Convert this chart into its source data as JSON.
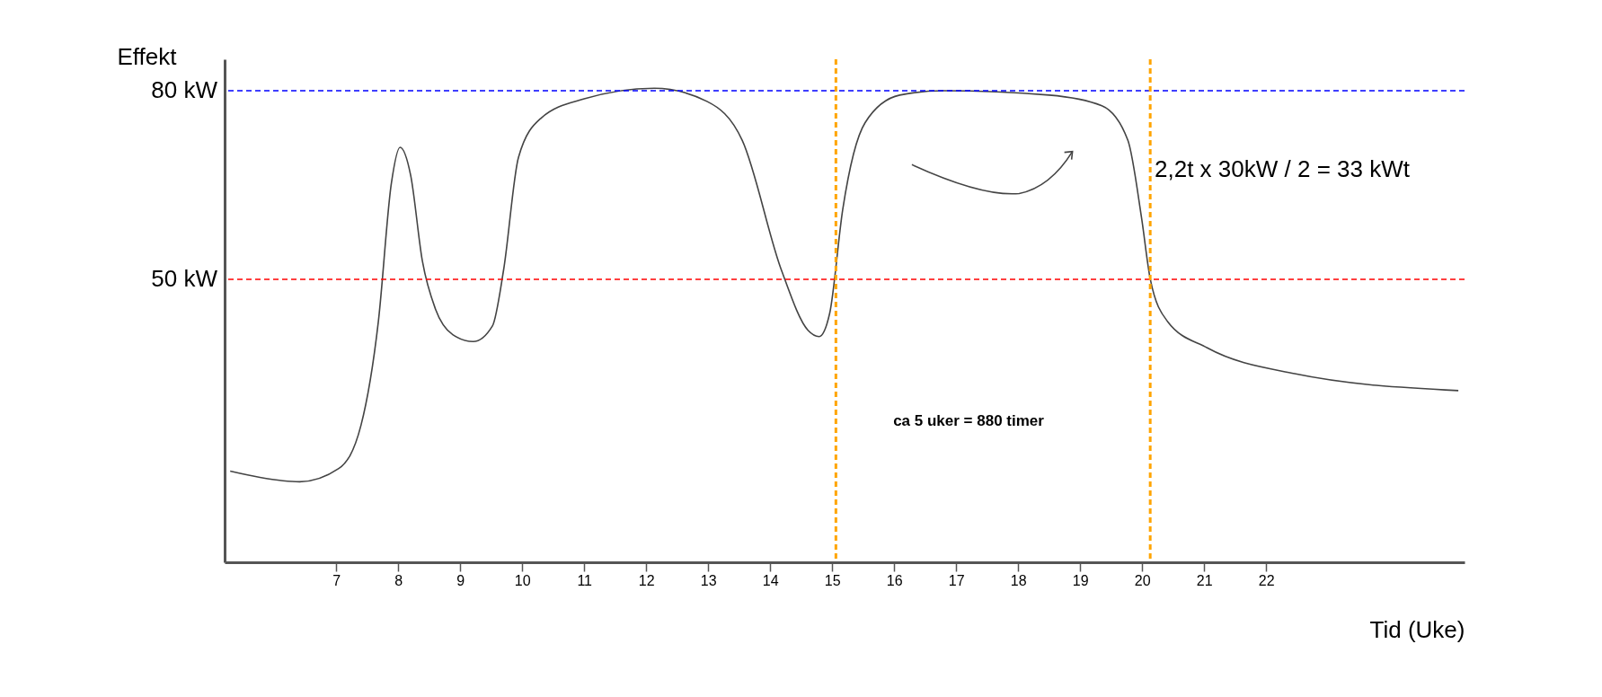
{
  "chart_data": {
    "type": "line",
    "xlabel": "Tid (Uke)",
    "ylabel": "Effekt",
    "x": [
      5.29,
      5.77,
      6.41,
      7.04,
      7.4,
      7.68,
      7.89,
      8.03,
      8.2,
      8.39,
      8.6,
      8.88,
      9.21,
      9.52,
      9.7,
      9.94,
      10.3,
      11.0,
      12.13,
      12.98,
      13.55,
      14.18,
      14.61,
      14.79,
      14.96,
      15.17,
      15.53,
      16.09,
      16.8,
      18.5,
      19.35,
      19.77,
      19.99,
      20.13,
      20.41,
      21.05,
      22.46,
      25.1
    ],
    "series": [
      {
        "color": "#444444",
        "values": [
          19.5,
          18.5,
          17.8,
          19.9,
          26.8,
          43.3,
          65.3,
          71,
          66.6,
          52.9,
          45.3,
          41.2,
          40.1,
          42.6,
          51.5,
          69.4,
          75.6,
          78.7,
          80.4,
          78.3,
          72.1,
          51.5,
          41.9,
          40.9,
          44.6,
          61.1,
          74.9,
          79.3,
          80,
          79.3,
          77.6,
          72.1,
          59.8,
          50.1,
          43.3,
          39.1,
          35,
          32.3
        ]
      }
    ],
    "xlim": [
      5.2,
      25.2
    ],
    "ylim": [
      5,
      85
    ],
    "xticks": [
      7,
      8,
      9,
      10,
      11,
      12,
      13,
      14,
      15,
      16,
      17,
      18,
      19,
      20,
      21,
      22
    ],
    "tick_labels": "x",
    "grid": false,
    "marker": "none",
    "line_style": "solid",
    "ref_lines": [
      {
        "axis": "y",
        "value": 50,
        "label": "50 kW",
        "color": "#ff0000",
        "line_style": "dashed"
      },
      {
        "axis": "y",
        "value": 80,
        "label": "80 kW",
        "color": "#0000ff",
        "line_style": "dashed"
      },
      {
        "axis": "x",
        "value": 15.06,
        "color": "#ffa500",
        "line_style": "dashed"
      },
      {
        "axis": "x",
        "value": 20.13,
        "color": "#ffa500",
        "line_style": "dashed"
      }
    ],
    "annotations": [
      "ca 5 uker = 880 timer",
      "2,2t x 30kW / 2 = 33 kWt"
    ]
  }
}
